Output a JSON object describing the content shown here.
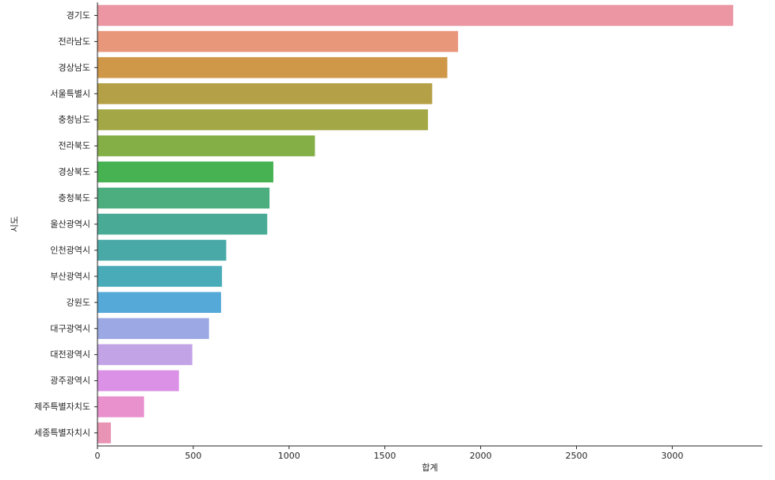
{
  "chart_data": {
    "type": "bar",
    "orientation": "horizontal",
    "title": "",
    "xlabel": "합계",
    "ylabel": "시도",
    "xlim": [
      0,
      3470
    ],
    "xticks": [
      0,
      500,
      1000,
      1500,
      2000,
      2500,
      3000
    ],
    "grid": false,
    "categories": [
      "경기도",
      "전라남도",
      "경상남도",
      "서울특별시",
      "충청남도",
      "전라북도",
      "경상북도",
      "충청북도",
      "울산광역시",
      "인천광역시",
      "부산광역시",
      "강원도",
      "대구광역시",
      "대전광역시",
      "광주광역시",
      "제주특별자치도",
      "세종특별자치시"
    ],
    "values": [
      3318,
      1882,
      1826,
      1747,
      1725,
      1135,
      918,
      898,
      886,
      672,
      650,
      645,
      582,
      495,
      425,
      243,
      70
    ],
    "colors": [
      "#eb96a2",
      "#e8977a",
      "#cf9848",
      "#b4a046",
      "#a3a745",
      "#84af46",
      "#47b252",
      "#4cae7f",
      "#49ab95",
      "#48a9a6",
      "#4aabb8",
      "#54a9d8",
      "#9ba8e4",
      "#c2a3e6",
      "#db91e6",
      "#e991cc",
      "#e994b4"
    ]
  }
}
